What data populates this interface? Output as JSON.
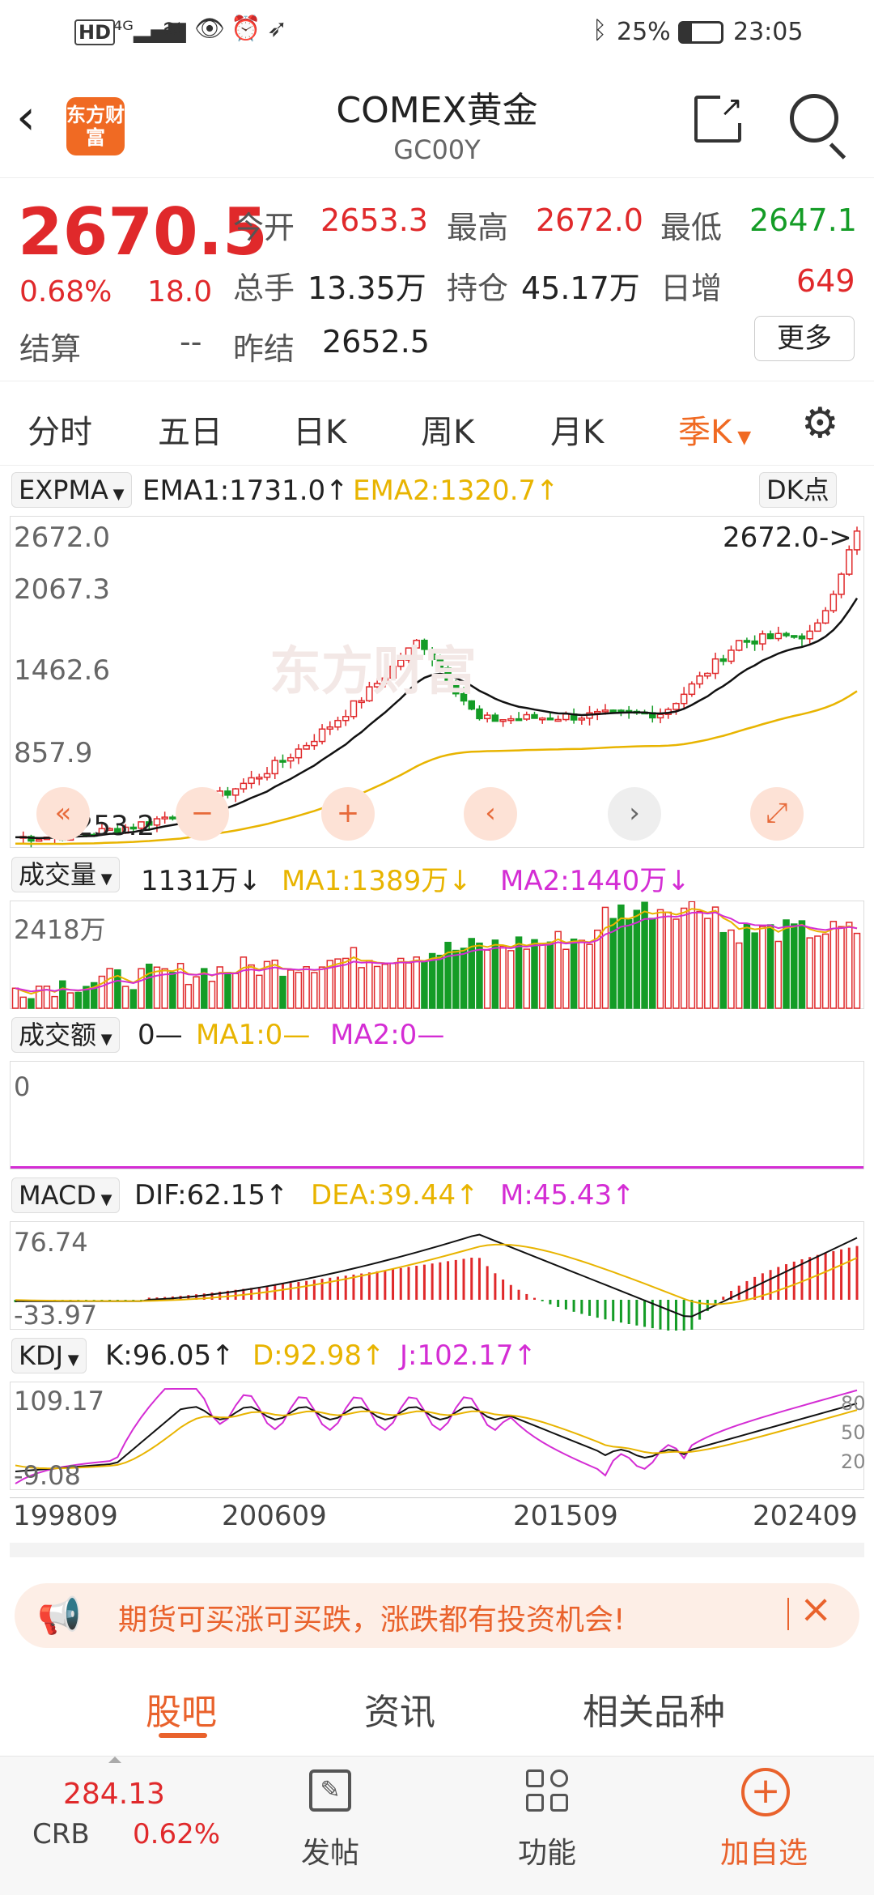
{
  "status": {
    "battery": "25%",
    "time": "23:05"
  },
  "header": {
    "logo_text": "东方财富",
    "title": "COMEX黄金",
    "code": "GC00Y"
  },
  "quote": {
    "price": "2670.5",
    "change_pct": "0.68%",
    "change": "18.0",
    "settle_label": "结算",
    "settle_value": "--",
    "open_label": "今开",
    "open_value": "2653.3",
    "high_label": "最高",
    "high_value": "2672.0",
    "low_label": "最低",
    "low_value": "2647.1",
    "vol_label": "总手",
    "vol_value": "13.35万",
    "oi_label": "持仓",
    "oi_value": "45.17万",
    "inc_label": "日增",
    "inc_value": "649",
    "prev_label": "昨结",
    "prev_value": "2652.5",
    "more_label": "更多"
  },
  "tabs": [
    "分时",
    "五日",
    "日K",
    "周K",
    "月K",
    "季K"
  ],
  "colors": {
    "red": "#e0292b",
    "green": "#149c26",
    "yellow": "#e8b400",
    "magenta": "#d42dd4",
    "orange": "#f06a23"
  },
  "main_chart": {
    "indicator": "EXPMA",
    "ema1": "EMA1:1731.0↑",
    "ema2": "EMA2:1320.7↑",
    "dk": "DK点",
    "ticks": [
      "2672.0",
      "2067.3",
      "1462.6",
      "857.9",
      "253.2"
    ],
    "max_label": "2672.0->",
    "min_label": "<-253.2",
    "watermark": "东方财富"
  },
  "volume_chart": {
    "label": "成交量",
    "value": "1131万↓",
    "ma1": "MA1:1389万↓",
    "ma2": "MA2:1440万↓",
    "tick": "2418万"
  },
  "amount_chart": {
    "label": "成交额",
    "value": "0—",
    "ma1": "MA1:0—",
    "ma2": "MA2:0—",
    "tick": "0"
  },
  "macd_chart": {
    "label": "MACD",
    "dif": "DIF:62.15↑",
    "dea": "DEA:39.44↑",
    "m": "M:45.43↑",
    "tick_top": "76.74",
    "tick_bottom": "-33.97"
  },
  "kdj_chart": {
    "label": "KDJ",
    "k": "K:96.05↑",
    "d": "D:92.98↑",
    "j": "J:102.17↑",
    "tick_top": "109.17",
    "tick_bottom": "-9.08",
    "right_ticks": [
      "80",
      "50",
      "20"
    ]
  },
  "x_axis": [
    "199809",
    "200609",
    "201509",
    "202409"
  ],
  "banner": {
    "text": "期货可买涨可买跌，涨跌都有投资机会!"
  },
  "bottom_tabs": [
    "股吧",
    "资讯",
    "相关品种"
  ],
  "footer": {
    "crb_value": "284.13",
    "crb_label": "CRB",
    "crb_pct": "0.62%",
    "post": "发帖",
    "func": "功能",
    "add": "加自选"
  }
}
